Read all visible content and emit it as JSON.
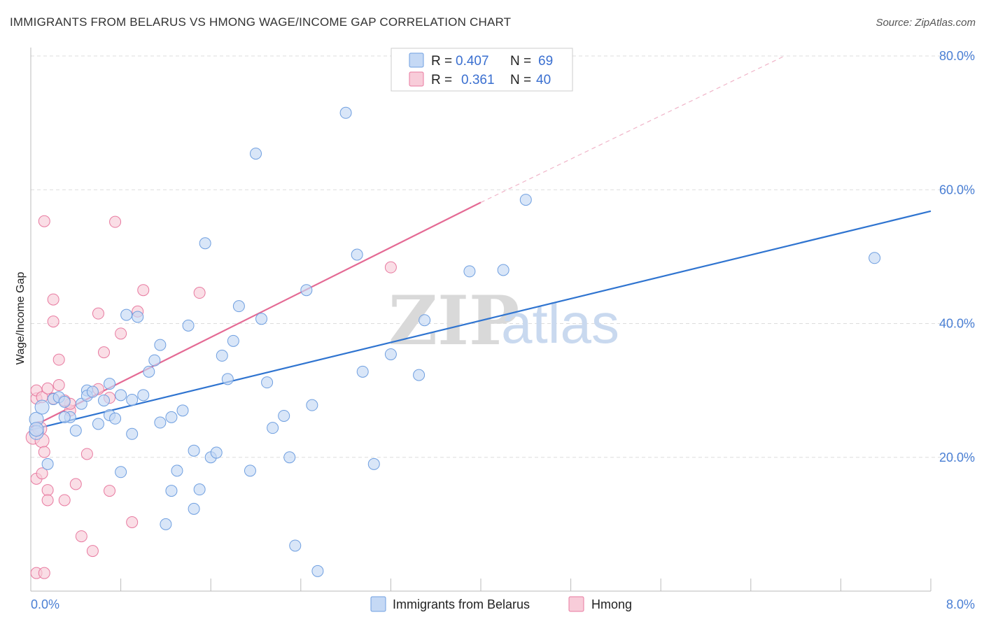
{
  "header": {
    "title": "IMMIGRANTS FROM BELARUS VS HMONG WAGE/INCOME GAP CORRELATION CHART",
    "source": "Source: ZipAtlas.com"
  },
  "colors": {
    "blue": "#6f9fe0",
    "blue_fill": "#c5d9f5",
    "pink": "#e87aa0",
    "pink_fill": "#f8ccd9",
    "blue_line": "#2f74d0",
    "pink_line": "#e46a94",
    "grid": "#dddddd",
    "tick_text": "#4a7fd4"
  },
  "legend": {
    "r_label": "R =",
    "n_label": "N =",
    "series": [
      {
        "name": "Immigrants from Belarus",
        "r": "0.407",
        "n": "69"
      },
      {
        "name": "Hmong",
        "r": "0.361",
        "n": "40"
      }
    ]
  },
  "watermark": {
    "zip": "ZIP",
    "atlas": "atlas"
  },
  "chart_data": {
    "type": "scatter",
    "title": "IMMIGRANTS FROM BELARUS VS HMONG WAGE/INCOME GAP CORRELATION CHART",
    "xlabel": "",
    "ylabel": "Wage/Income Gap",
    "xlim": [
      0,
      8
    ],
    "ylim": [
      0,
      80
    ],
    "x_tick_labels": [
      "0.0%",
      "8.0%"
    ],
    "y_ticks": [
      20,
      40,
      60,
      80
    ],
    "y_tick_labels": [
      "20.0%",
      "40.0%",
      "60.0%",
      "80.0%"
    ],
    "grid": true,
    "series": [
      {
        "name": "Immigrants from Belarus",
        "r": 0.407,
        "n": 69,
        "trend": {
          "x": [
            0,
            8
          ],
          "y": [
            24.1,
            56.8
          ]
        },
        "points": [
          [
            0.05,
            25.7
          ],
          [
            0.05,
            23.7
          ],
          [
            0.1,
            27.5
          ],
          [
            0.15,
            19
          ],
          [
            0.2,
            28.7
          ],
          [
            0.25,
            29
          ],
          [
            0.3,
            28.3
          ],
          [
            0.35,
            26
          ],
          [
            0.4,
            24
          ],
          [
            0.45,
            28
          ],
          [
            0.5,
            30
          ],
          [
            0.5,
            29.2
          ],
          [
            0.55,
            29.8
          ],
          [
            0.6,
            25
          ],
          [
            0.65,
            28.5
          ],
          [
            0.7,
            31
          ],
          [
            0.7,
            26.3
          ],
          [
            0.75,
            25.8
          ],
          [
            0.8,
            17.8
          ],
          [
            0.8,
            29.3
          ],
          [
            0.85,
            41.3
          ],
          [
            0.9,
            23.5
          ],
          [
            0.9,
            28.6
          ],
          [
            0.95,
            41
          ],
          [
            1.0,
            29.3
          ],
          [
            1.05,
            32.8
          ],
          [
            1.1,
            34.5
          ],
          [
            1.15,
            36.8
          ],
          [
            1.15,
            25.2
          ],
          [
            1.2,
            10
          ],
          [
            1.25,
            15
          ],
          [
            1.25,
            26
          ],
          [
            1.3,
            18
          ],
          [
            1.35,
            27
          ],
          [
            1.4,
            39.7
          ],
          [
            1.45,
            21
          ],
          [
            1.45,
            12.3
          ],
          [
            1.5,
            15.2
          ],
          [
            1.55,
            52
          ],
          [
            1.6,
            20
          ],
          [
            1.65,
            20.7
          ],
          [
            1.7,
            35.2
          ],
          [
            1.75,
            31.7
          ],
          [
            1.8,
            37.4
          ],
          [
            1.85,
            42.6
          ],
          [
            1.95,
            18
          ],
          [
            2.0,
            65.4
          ],
          [
            2.05,
            40.7
          ],
          [
            2.1,
            31.2
          ],
          [
            2.15,
            24.4
          ],
          [
            2.25,
            26.2
          ],
          [
            2.3,
            20
          ],
          [
            2.35,
            6.8
          ],
          [
            2.45,
            45
          ],
          [
            2.5,
            27.8
          ],
          [
            2.55,
            3
          ],
          [
            2.8,
            71.5
          ],
          [
            2.9,
            50.3
          ],
          [
            2.95,
            32.8
          ],
          [
            3.05,
            19
          ],
          [
            3.2,
            35.4
          ],
          [
            3.45,
            32.3
          ],
          [
            3.5,
            40.5
          ],
          [
            3.9,
            47.8
          ],
          [
            4.2,
            48
          ],
          [
            4.4,
            58.5
          ],
          [
            7.5,
            49.8
          ],
          [
            0.05,
            24.2
          ],
          [
            0.3,
            26
          ]
        ]
      },
      {
        "name": "Hmong",
        "r": 0.361,
        "n": 40,
        "trend": {
          "x": [
            0,
            4
          ],
          "y": [
            24.5,
            58.1
          ]
        },
        "trend_dashed": {
          "x": [
            4,
            6.7
          ],
          "y": [
            58.1,
            80
          ]
        },
        "points": [
          [
            0.02,
            23
          ],
          [
            0.05,
            16.8
          ],
          [
            0.05,
            28.8
          ],
          [
            0.05,
            30
          ],
          [
            0.08,
            24.3
          ],
          [
            0.1,
            17.6
          ],
          [
            0.1,
            22.5
          ],
          [
            0.1,
            29
          ],
          [
            0.12,
            55.3
          ],
          [
            0.12,
            20.8
          ],
          [
            0.15,
            15.1
          ],
          [
            0.15,
            30.3
          ],
          [
            0.2,
            40.3
          ],
          [
            0.2,
            43.6
          ],
          [
            0.2,
            28.8
          ],
          [
            0.25,
            34.6
          ],
          [
            0.25,
            30.8
          ],
          [
            0.3,
            13.6
          ],
          [
            0.35,
            27
          ],
          [
            0.35,
            28
          ],
          [
            0.4,
            16
          ],
          [
            0.45,
            8.2
          ],
          [
            0.5,
            20.5
          ],
          [
            0.55,
            6
          ],
          [
            0.6,
            41.5
          ],
          [
            0.6,
            30.2
          ],
          [
            0.65,
            35.7
          ],
          [
            0.7,
            28.9
          ],
          [
            0.7,
            15
          ],
          [
            0.75,
            55.2
          ],
          [
            0.8,
            38.5
          ],
          [
            0.9,
            10.3
          ],
          [
            0.95,
            41.8
          ],
          [
            1.0,
            45
          ],
          [
            1.5,
            44.6
          ],
          [
            3.2,
            48.4
          ],
          [
            0.05,
            2.7
          ],
          [
            0.12,
            2.7
          ],
          [
            0.3,
            28.5
          ],
          [
            0.15,
            13.6
          ]
        ]
      }
    ]
  }
}
